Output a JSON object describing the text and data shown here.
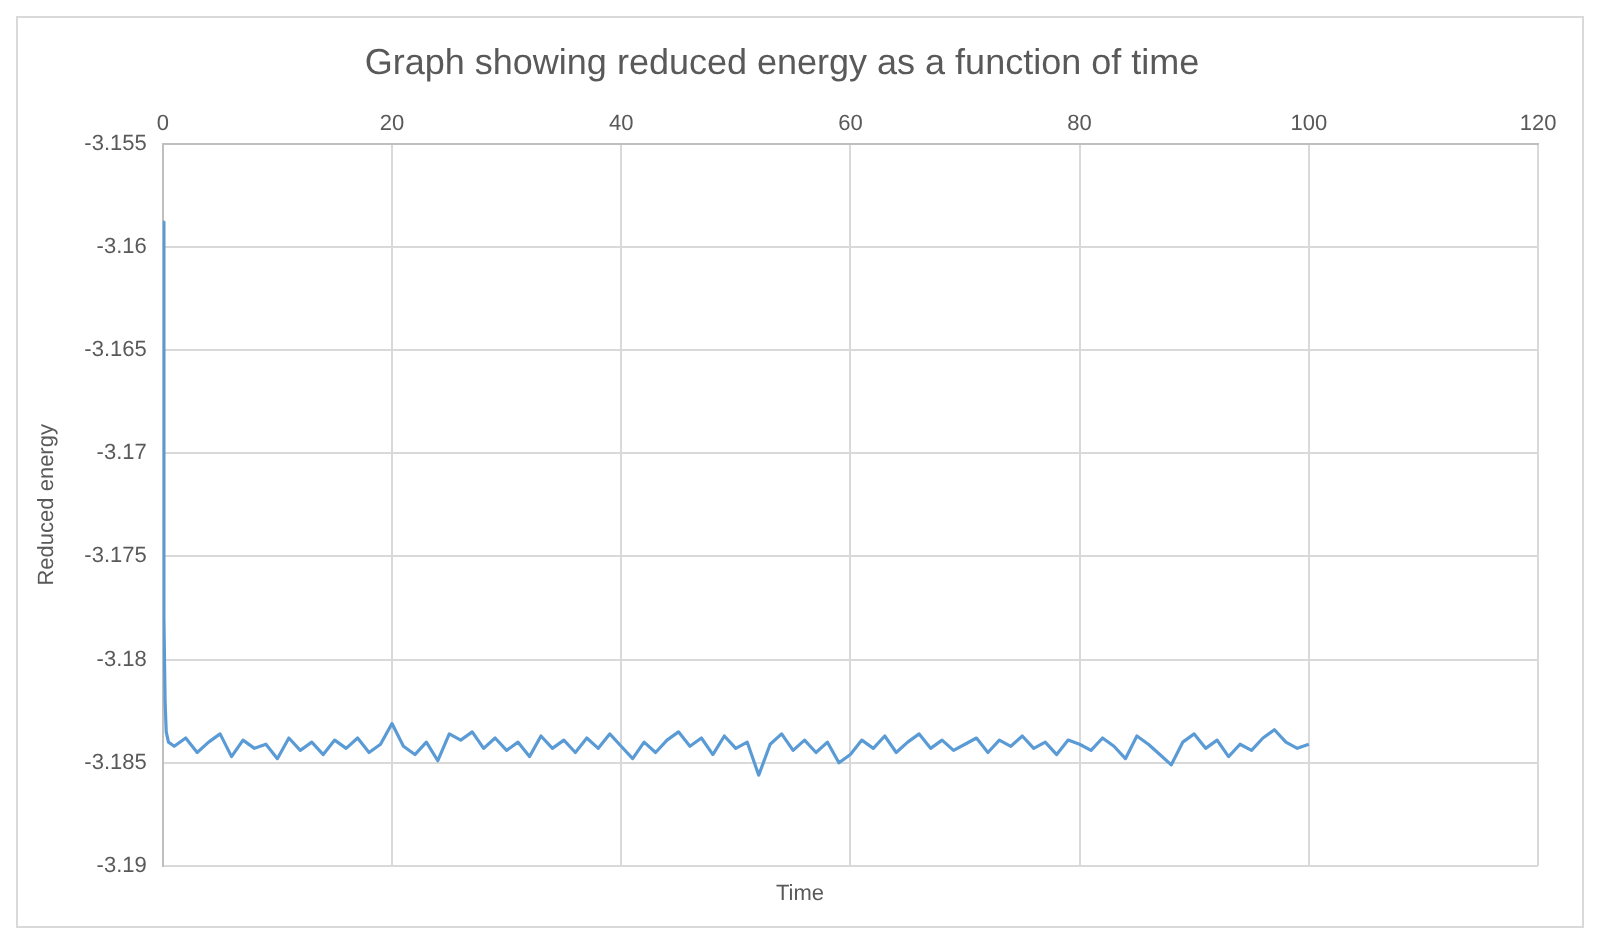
{
  "chart_data": {
    "type": "line",
    "title": "Graph showing reduced energy as a function of time",
    "xlabel": "Time",
    "ylabel": "Reduced energy",
    "xlim": [
      0,
      120
    ],
    "xticks": [
      0,
      20,
      40,
      60,
      80,
      100,
      120
    ],
    "ylim": [
      -3.19,
      -3.155
    ],
    "yticks": [
      -3.19,
      -3.185,
      -3.18,
      -3.175,
      -3.17,
      -3.165,
      -3.16,
      -3.155
    ],
    "grid": true,
    "legend": false,
    "marker": "none",
    "line_style": "solid",
    "series": [
      {
        "color": "#5b9bd5",
        "x": [
          0,
          0.1,
          0.2,
          0.3,
          0.5,
          1,
          2,
          3,
          4,
          5,
          6,
          7,
          8,
          9,
          10,
          11,
          12,
          13,
          14,
          15,
          16,
          17,
          18,
          19,
          20,
          21,
          22,
          23,
          24,
          25,
          26,
          27,
          28,
          29,
          30,
          31,
          32,
          33,
          34,
          35,
          36,
          37,
          38,
          39,
          40,
          41,
          42,
          43,
          44,
          45,
          46,
          47,
          48,
          49,
          50,
          51,
          52,
          53,
          54,
          55,
          56,
          57,
          58,
          59,
          60,
          61,
          62,
          63,
          64,
          65,
          66,
          67,
          68,
          69,
          70,
          71,
          72,
          73,
          74,
          75,
          76,
          77,
          78,
          79,
          80,
          81,
          82,
          83,
          84,
          85,
          86,
          87,
          88,
          89,
          90,
          91,
          92,
          93,
          94,
          95,
          96,
          97,
          98,
          99,
          100
        ],
        "values": [
          -3.1588,
          -3.178,
          -3.182,
          -3.1835,
          -3.184,
          -3.1842,
          -3.1838,
          -3.1845,
          -3.184,
          -3.1836,
          -3.1847,
          -3.1839,
          -3.1843,
          -3.1841,
          -3.1848,
          -3.1838,
          -3.1844,
          -3.184,
          -3.1846,
          -3.1839,
          -3.1843,
          -3.1838,
          -3.1845,
          -3.1841,
          -3.1831,
          -3.1842,
          -3.1846,
          -3.184,
          -3.1849,
          -3.1836,
          -3.1839,
          -3.1835,
          -3.1843,
          -3.1838,
          -3.1844,
          -3.184,
          -3.1847,
          -3.1837,
          -3.1843,
          -3.1839,
          -3.1845,
          -3.1838,
          -3.1843,
          -3.1836,
          -3.1842,
          -3.1848,
          -3.184,
          -3.1845,
          -3.1839,
          -3.1835,
          -3.1842,
          -3.1838,
          -3.1846,
          -3.1837,
          -3.1843,
          -3.184,
          -3.1856,
          -3.1841,
          -3.1836,
          -3.1844,
          -3.1839,
          -3.1845,
          -3.184,
          -3.185,
          -3.1846,
          -3.1839,
          -3.1843,
          -3.1837,
          -3.1845,
          -3.184,
          -3.1836,
          -3.1843,
          -3.1839,
          -3.1844,
          -3.1841,
          -3.1838,
          -3.1845,
          -3.1839,
          -3.1842,
          -3.1837,
          -3.1843,
          -3.184,
          -3.1846,
          -3.1839,
          -3.1841,
          -3.1844,
          -3.1838,
          -3.1842,
          -3.1848,
          -3.1837,
          -3.1841,
          -3.1846,
          -3.1851,
          -3.184,
          -3.1836,
          -3.1843,
          -3.1839,
          -3.1847,
          -3.1841,
          -3.1844,
          -3.1838,
          -3.1834,
          -3.184,
          -3.1843,
          -3.1841
        ]
      }
    ]
  }
}
